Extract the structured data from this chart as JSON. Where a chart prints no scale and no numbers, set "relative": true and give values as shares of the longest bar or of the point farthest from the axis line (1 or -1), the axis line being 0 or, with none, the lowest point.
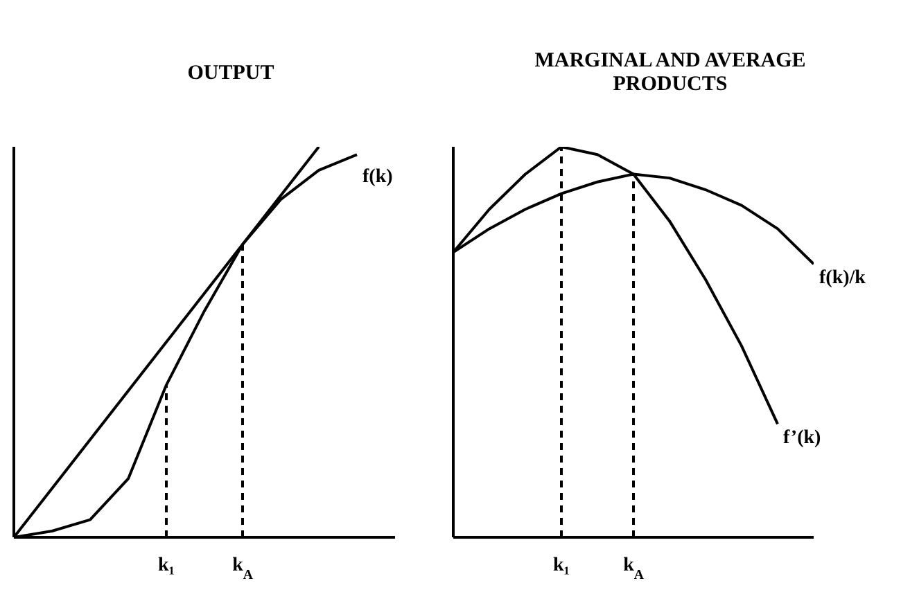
{
  "chart_data": [
    {
      "type": "line",
      "title": "OUTPUT",
      "relative": true,
      "categories": [
        null,
        null,
        null,
        null,
        "k₁",
        null,
        "k$_{A}$",
        null,
        null,
        null,
        null
      ],
      "series": [
        {
          "name": "f(k)",
          "color": "#000000",
          "values": [
            0,
            0.016,
            0.045,
            0.15,
            0.39,
            0.58,
            0.75,
            0.865,
            0.94,
            0.98,
            null
          ]
        },
        {
          "color": "#000000",
          "values": [
            0,
            0.125,
            0.25,
            0.375,
            0.5,
            0.625,
            0.75,
            0.875,
            1,
            null,
            null
          ]
        }
      ],
      "ref_lines": [
        {
          "axis": "x",
          "value": "k₁",
          "color": "#000000",
          "line_style": "dashed"
        },
        {
          "axis": "x",
          "value": "k$_{A}$",
          "color": "#000000",
          "line_style": "dashed"
        }
      ]
    },
    {
      "type": "line",
      "title": "MARGINAL AND AVERAGE PRODUCTS",
      "relative": true,
      "categories": [
        null,
        null,
        null,
        "k₁",
        null,
        "k$_{A}$",
        null,
        null,
        null,
        null,
        null
      ],
      "series": [
        {
          "name": "f’(k)",
          "color": "#000000",
          "values": [
            0.73,
            0.84,
            0.93,
            1,
            0.98,
            0.93,
            0.81,
            0.66,
            0.49,
            0.29,
            null
          ]
        },
        {
          "name": "f(k)/k",
          "color": "#000000",
          "values": [
            0.73,
            0.79,
            0.84,
            0.88,
            0.91,
            0.93,
            0.92,
            0.89,
            0.85,
            0.79,
            0.7
          ]
        }
      ],
      "ref_lines": [
        {
          "axis": "x",
          "value": "k₁",
          "color": "#000000",
          "line_style": "dashed"
        },
        {
          "axis": "x",
          "value": "k$_{A}$",
          "color": "#000000",
          "line_style": "dashed"
        }
      ]
    }
  ]
}
